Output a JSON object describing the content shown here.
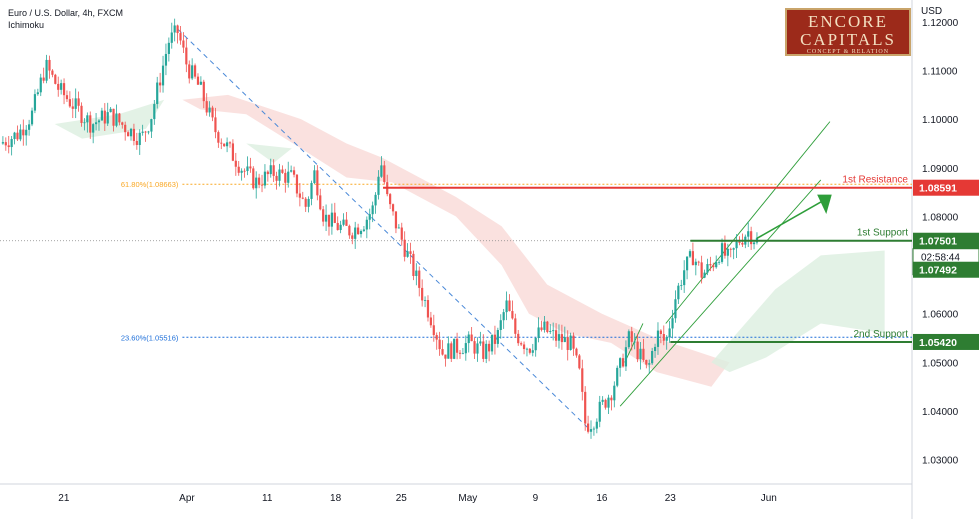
{
  "header": {
    "symbol_line": "Euro / U.S. Dollar, 4h, FXCM",
    "indicator": "Ichimoku",
    "currency": "USD"
  },
  "logo": {
    "line1": "ENCORE",
    "line2": "CAPITALS",
    "line3": "CONCEPT & RELATION"
  },
  "chart_data": {
    "type": "candlestick",
    "x_axis_ticks": [
      {
        "label": "21",
        "t": 0.07
      },
      {
        "label": "Apr",
        "t": 0.205
      },
      {
        "label": "11",
        "t": 0.293
      },
      {
        "label": "18",
        "t": 0.368
      },
      {
        "label": "25",
        "t": 0.44
      },
      {
        "label": "May",
        "t": 0.513
      },
      {
        "label": "9",
        "t": 0.587
      },
      {
        "label": "16",
        "t": 0.66
      },
      {
        "label": "23",
        "t": 0.735
      },
      {
        "label": "Jun",
        "t": 0.843
      }
    ],
    "y_axis": {
      "min": 1.025,
      "max": 1.1245,
      "ticks": [
        1.03,
        1.04,
        1.05,
        1.06,
        1.08,
        1.09,
        1.1,
        1.11,
        1.12
      ],
      "labels": [
        "1.03000",
        "1.04000",
        "1.05000",
        "1.06000",
        "1.08000",
        "1.09000",
        "1.10000",
        "1.11000",
        "1.12000"
      ]
    },
    "price_path": [
      [
        0.0,
        1.095
      ],
      [
        0.02,
        1.097
      ],
      [
        0.035,
        1.101
      ],
      [
        0.05,
        1.111
      ],
      [
        0.065,
        1.106
      ],
      [
        0.08,
        1.103
      ],
      [
        0.1,
        1.099
      ],
      [
        0.12,
        1.101
      ],
      [
        0.14,
        1.098
      ],
      [
        0.155,
        1.096
      ],
      [
        0.165,
        1.1
      ],
      [
        0.175,
        1.108
      ],
      [
        0.185,
        1.116
      ],
      [
        0.195,
        1.118
      ],
      [
        0.205,
        1.111
      ],
      [
        0.22,
        1.106
      ],
      [
        0.235,
        1.098
      ],
      [
        0.25,
        1.094
      ],
      [
        0.265,
        1.09
      ],
      [
        0.28,
        1.087
      ],
      [
        0.3,
        1.089
      ],
      [
        0.32,
        1.088
      ],
      [
        0.335,
        1.082
      ],
      [
        0.345,
        1.089
      ],
      [
        0.355,
        1.08
      ],
      [
        0.37,
        1.078
      ],
      [
        0.385,
        1.077
      ],
      [
        0.4,
        1.079
      ],
      [
        0.41,
        1.082
      ],
      [
        0.417,
        1.092
      ],
      [
        0.425,
        1.083
      ],
      [
        0.435,
        1.078
      ],
      [
        0.445,
        1.073
      ],
      [
        0.455,
        1.068
      ],
      [
        0.465,
        1.063
      ],
      [
        0.475,
        1.058
      ],
      [
        0.485,
        1.052
      ],
      [
        0.5,
        1.053
      ],
      [
        0.515,
        1.054
      ],
      [
        0.53,
        1.052
      ],
      [
        0.545,
        1.055
      ],
      [
        0.555,
        1.062
      ],
      [
        0.565,
        1.056
      ],
      [
        0.58,
        1.053
      ],
      [
        0.595,
        1.057
      ],
      [
        0.61,
        1.055
      ],
      [
        0.625,
        1.054
      ],
      [
        0.635,
        1.048
      ],
      [
        0.642,
        1.037
      ],
      [
        0.65,
        1.038
      ],
      [
        0.66,
        1.041
      ],
      [
        0.67,
        1.044
      ],
      [
        0.68,
        1.049
      ],
      [
        0.69,
        1.055
      ],
      [
        0.7,
        1.052
      ],
      [
        0.71,
        1.048
      ],
      [
        0.72,
        1.056
      ],
      [
        0.73,
        1.054
      ],
      [
        0.74,
        1.063
      ],
      [
        0.75,
        1.069
      ],
      [
        0.76,
        1.072
      ],
      [
        0.77,
        1.068
      ],
      [
        0.78,
        1.07
      ],
      [
        0.79,
        1.073
      ],
      [
        0.8,
        1.071
      ],
      [
        0.81,
        1.075
      ],
      [
        0.82,
        1.077
      ],
      [
        0.83,
        1.075
      ]
    ],
    "levels": [
      {
        "name": "1st Resistance",
        "value": 1.08591,
        "label": "1.08591",
        "color": "#e53935"
      },
      {
        "name": "1st Support",
        "value": 1.07501,
        "label": "1.07501",
        "color": "#2e7d32"
      },
      {
        "name": "2nd Support",
        "value": 1.0542,
        "label": "1.05420",
        "color": "#2e7d32"
      }
    ],
    "fib_levels": [
      {
        "label": "61.80%(1.08663)",
        "value": 1.08663,
        "color": "#f9a825"
      },
      {
        "label": "23.60%(1.05516)",
        "value": 1.05516,
        "color": "#1e6fd9"
      }
    ],
    "current_price": {
      "label": "1.07501",
      "countdown": "02:58:44",
      "extra": "1.07492",
      "value": 1.07501,
      "extra_value": 1.07492
    },
    "colors": {
      "up": "#26a69a",
      "down": "#ef5350",
      "cloud_bear": "#f8d7d4",
      "cloud_bull": "#dcefe0",
      "channel": "#2e9e3a",
      "trend": "#4a89d8"
    }
  }
}
